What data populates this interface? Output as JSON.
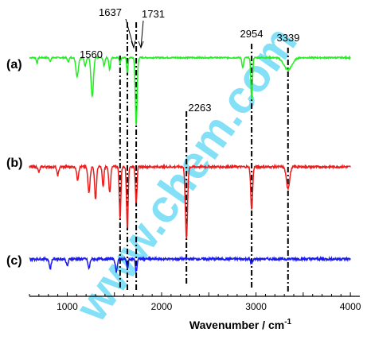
{
  "chart_data": {
    "type": "line",
    "xlabel": "Wavenumber / cm",
    "xlabel_sup": "-1",
    "xlim": [
      600,
      4100
    ],
    "xticks": [
      1000,
      2000,
      3000,
      4000
    ],
    "y_ticks_shown": false,
    "grid": false,
    "legend": "none",
    "series": [
      {
        "name": "(a)",
        "color": "#22ee22",
        "baseline": 0.04,
        "noise": 0.02,
        "bands": [
          {
            "center": 680,
            "depth": 0.08,
            "width": 10
          },
          {
            "center": 820,
            "depth": 0.05,
            "width": 12
          },
          {
            "center": 1010,
            "depth": 0.06,
            "width": 12
          },
          {
            "center": 1105,
            "depth": 0.28,
            "width": 18
          },
          {
            "center": 1190,
            "depth": 0.12,
            "width": 14
          },
          {
            "center": 1265,
            "depth": 0.58,
            "width": 18
          },
          {
            "center": 1390,
            "depth": 0.12,
            "width": 12
          },
          {
            "center": 1450,
            "depth": 0.18,
            "width": 12
          },
          {
            "center": 1560,
            "depth": 0.08,
            "width": 10
          },
          {
            "center": 1637,
            "depth": 0.22,
            "width": 10
          },
          {
            "center": 1731,
            "depth": 1.0,
            "width": 14
          },
          {
            "center": 2860,
            "depth": 0.15,
            "width": 12
          },
          {
            "center": 2954,
            "depth": 0.62,
            "width": 12
          },
          {
            "center": 3339,
            "depth": 0.18,
            "width": 60
          }
        ]
      },
      {
        "name": "(b)",
        "color": "#ee1c1c",
        "baseline": 0.0,
        "noise": 0.03,
        "bands": [
          {
            "center": 700,
            "depth": 0.08,
            "width": 12
          },
          {
            "center": 900,
            "depth": 0.12,
            "width": 14
          },
          {
            "center": 1110,
            "depth": 0.18,
            "width": 14
          },
          {
            "center": 1230,
            "depth": 0.35,
            "width": 16
          },
          {
            "center": 1300,
            "depth": 0.45,
            "width": 14
          },
          {
            "center": 1380,
            "depth": 0.28,
            "width": 12
          },
          {
            "center": 1450,
            "depth": 0.35,
            "width": 14
          },
          {
            "center": 1560,
            "depth": 0.72,
            "width": 12
          },
          {
            "center": 1637,
            "depth": 0.85,
            "width": 12
          },
          {
            "center": 1731,
            "depth": 0.5,
            "width": 12
          },
          {
            "center": 2263,
            "depth": 1.0,
            "width": 16
          },
          {
            "center": 2954,
            "depth": 0.6,
            "width": 14
          },
          {
            "center": 3339,
            "depth": 0.3,
            "width": 25
          }
        ]
      },
      {
        "name": "(c)",
        "color": "#1a1aee",
        "baseline": 0.0,
        "noise": 0.09,
        "bands": [
          {
            "center": 820,
            "depth": 0.35,
            "width": 14
          },
          {
            "center": 1000,
            "depth": 0.25,
            "width": 14
          },
          {
            "center": 1230,
            "depth": 0.35,
            "width": 14
          },
          {
            "center": 1520,
            "depth": 0.45,
            "width": 14
          },
          {
            "center": 1637,
            "depth": 0.35,
            "width": 12
          },
          {
            "center": 1731,
            "depth": 0.45,
            "width": 12
          },
          {
            "center": 2954,
            "depth": 0.18,
            "width": 14
          }
        ]
      }
    ],
    "annotations": [
      {
        "label": "1560",
        "x": 1560
      },
      {
        "label": "1637",
        "x": 1637
      },
      {
        "label": "1731",
        "x": 1731
      },
      {
        "label": "2263",
        "x": 2263
      },
      {
        "label": "2954",
        "x": 2954
      },
      {
        "label": "3339",
        "x": 3339
      }
    ]
  },
  "watermark": "www.chem.com"
}
